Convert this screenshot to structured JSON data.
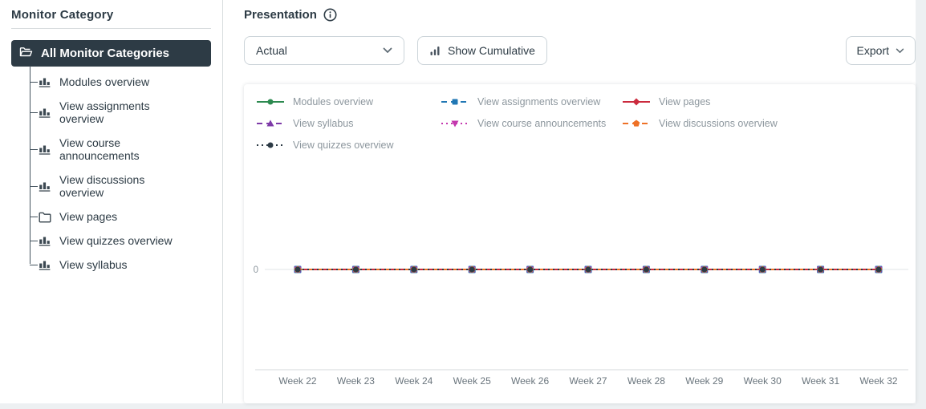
{
  "sidebar": {
    "title": "Monitor Category",
    "selected": {
      "label": "All Monitor Categories",
      "icon": "folder-open-icon"
    },
    "items": [
      {
        "label": "Modules overview",
        "icon": "bar-chart-icon"
      },
      {
        "label": "View assignments overview",
        "icon": "bar-chart-icon"
      },
      {
        "label": "View course announcements",
        "icon": "bar-chart-icon"
      },
      {
        "label": "View discussions overview",
        "icon": "bar-chart-icon"
      },
      {
        "label": "View pages",
        "icon": "folder-icon"
      },
      {
        "label": "View quizzes overview",
        "icon": "bar-chart-icon"
      },
      {
        "label": "View syllabus",
        "icon": "bar-chart-icon"
      }
    ]
  },
  "main": {
    "title": "Presentation",
    "toolbar": {
      "presentation_select_value": "Actual",
      "show_cumulative_label": "Show Cumulative",
      "export_label": "Export"
    }
  },
  "chart_data": {
    "type": "line",
    "title": "",
    "xlabel": "",
    "ylabel": "",
    "grid": false,
    "legend_position": "top-left",
    "y_ticks": [
      "0"
    ],
    "categories": [
      "Week 22",
      "Week 23",
      "Week 24",
      "Week 25",
      "Week 26",
      "Week 27",
      "Week 28",
      "Week 29",
      "Week 30",
      "Week 31",
      "Week 32"
    ],
    "series": [
      {
        "name": "Modules overview",
        "color": "#2d8a50",
        "marker": "circle",
        "line": "solid",
        "values": [
          0,
          0,
          0,
          0,
          0,
          0,
          0,
          0,
          0,
          0,
          0
        ]
      },
      {
        "name": "View assignments overview",
        "color": "#2077b4",
        "marker": "square",
        "line": "dashed",
        "values": [
          0,
          0,
          0,
          0,
          0,
          0,
          0,
          0,
          0,
          0,
          0
        ]
      },
      {
        "name": "View pages",
        "color": "#cb2a3d",
        "marker": "diamond",
        "line": "solid",
        "values": [
          0,
          0,
          0,
          0,
          0,
          0,
          0,
          0,
          0,
          0,
          0
        ]
      },
      {
        "name": "View syllabus",
        "color": "#7e3ba8",
        "marker": "triangle-up",
        "line": "dashed",
        "values": [
          0,
          0,
          0,
          0,
          0,
          0,
          0,
          0,
          0,
          0,
          0
        ]
      },
      {
        "name": "View course announcements",
        "color": "#c438ae",
        "marker": "triangle-down",
        "line": "dotted",
        "values": [
          0,
          0,
          0,
          0,
          0,
          0,
          0,
          0,
          0,
          0,
          0
        ]
      },
      {
        "name": "View discussions overview",
        "color": "#ee7127",
        "marker": "pentagon",
        "line": "dashed",
        "values": [
          0,
          0,
          0,
          0,
          0,
          0,
          0,
          0,
          0,
          0,
          0
        ]
      },
      {
        "name": "View quizzes overview",
        "color": "#2d3b45",
        "marker": "circle",
        "line": "dotted",
        "values": [
          0,
          0,
          0,
          0,
          0,
          0,
          0,
          0,
          0,
          0,
          0
        ]
      }
    ]
  }
}
